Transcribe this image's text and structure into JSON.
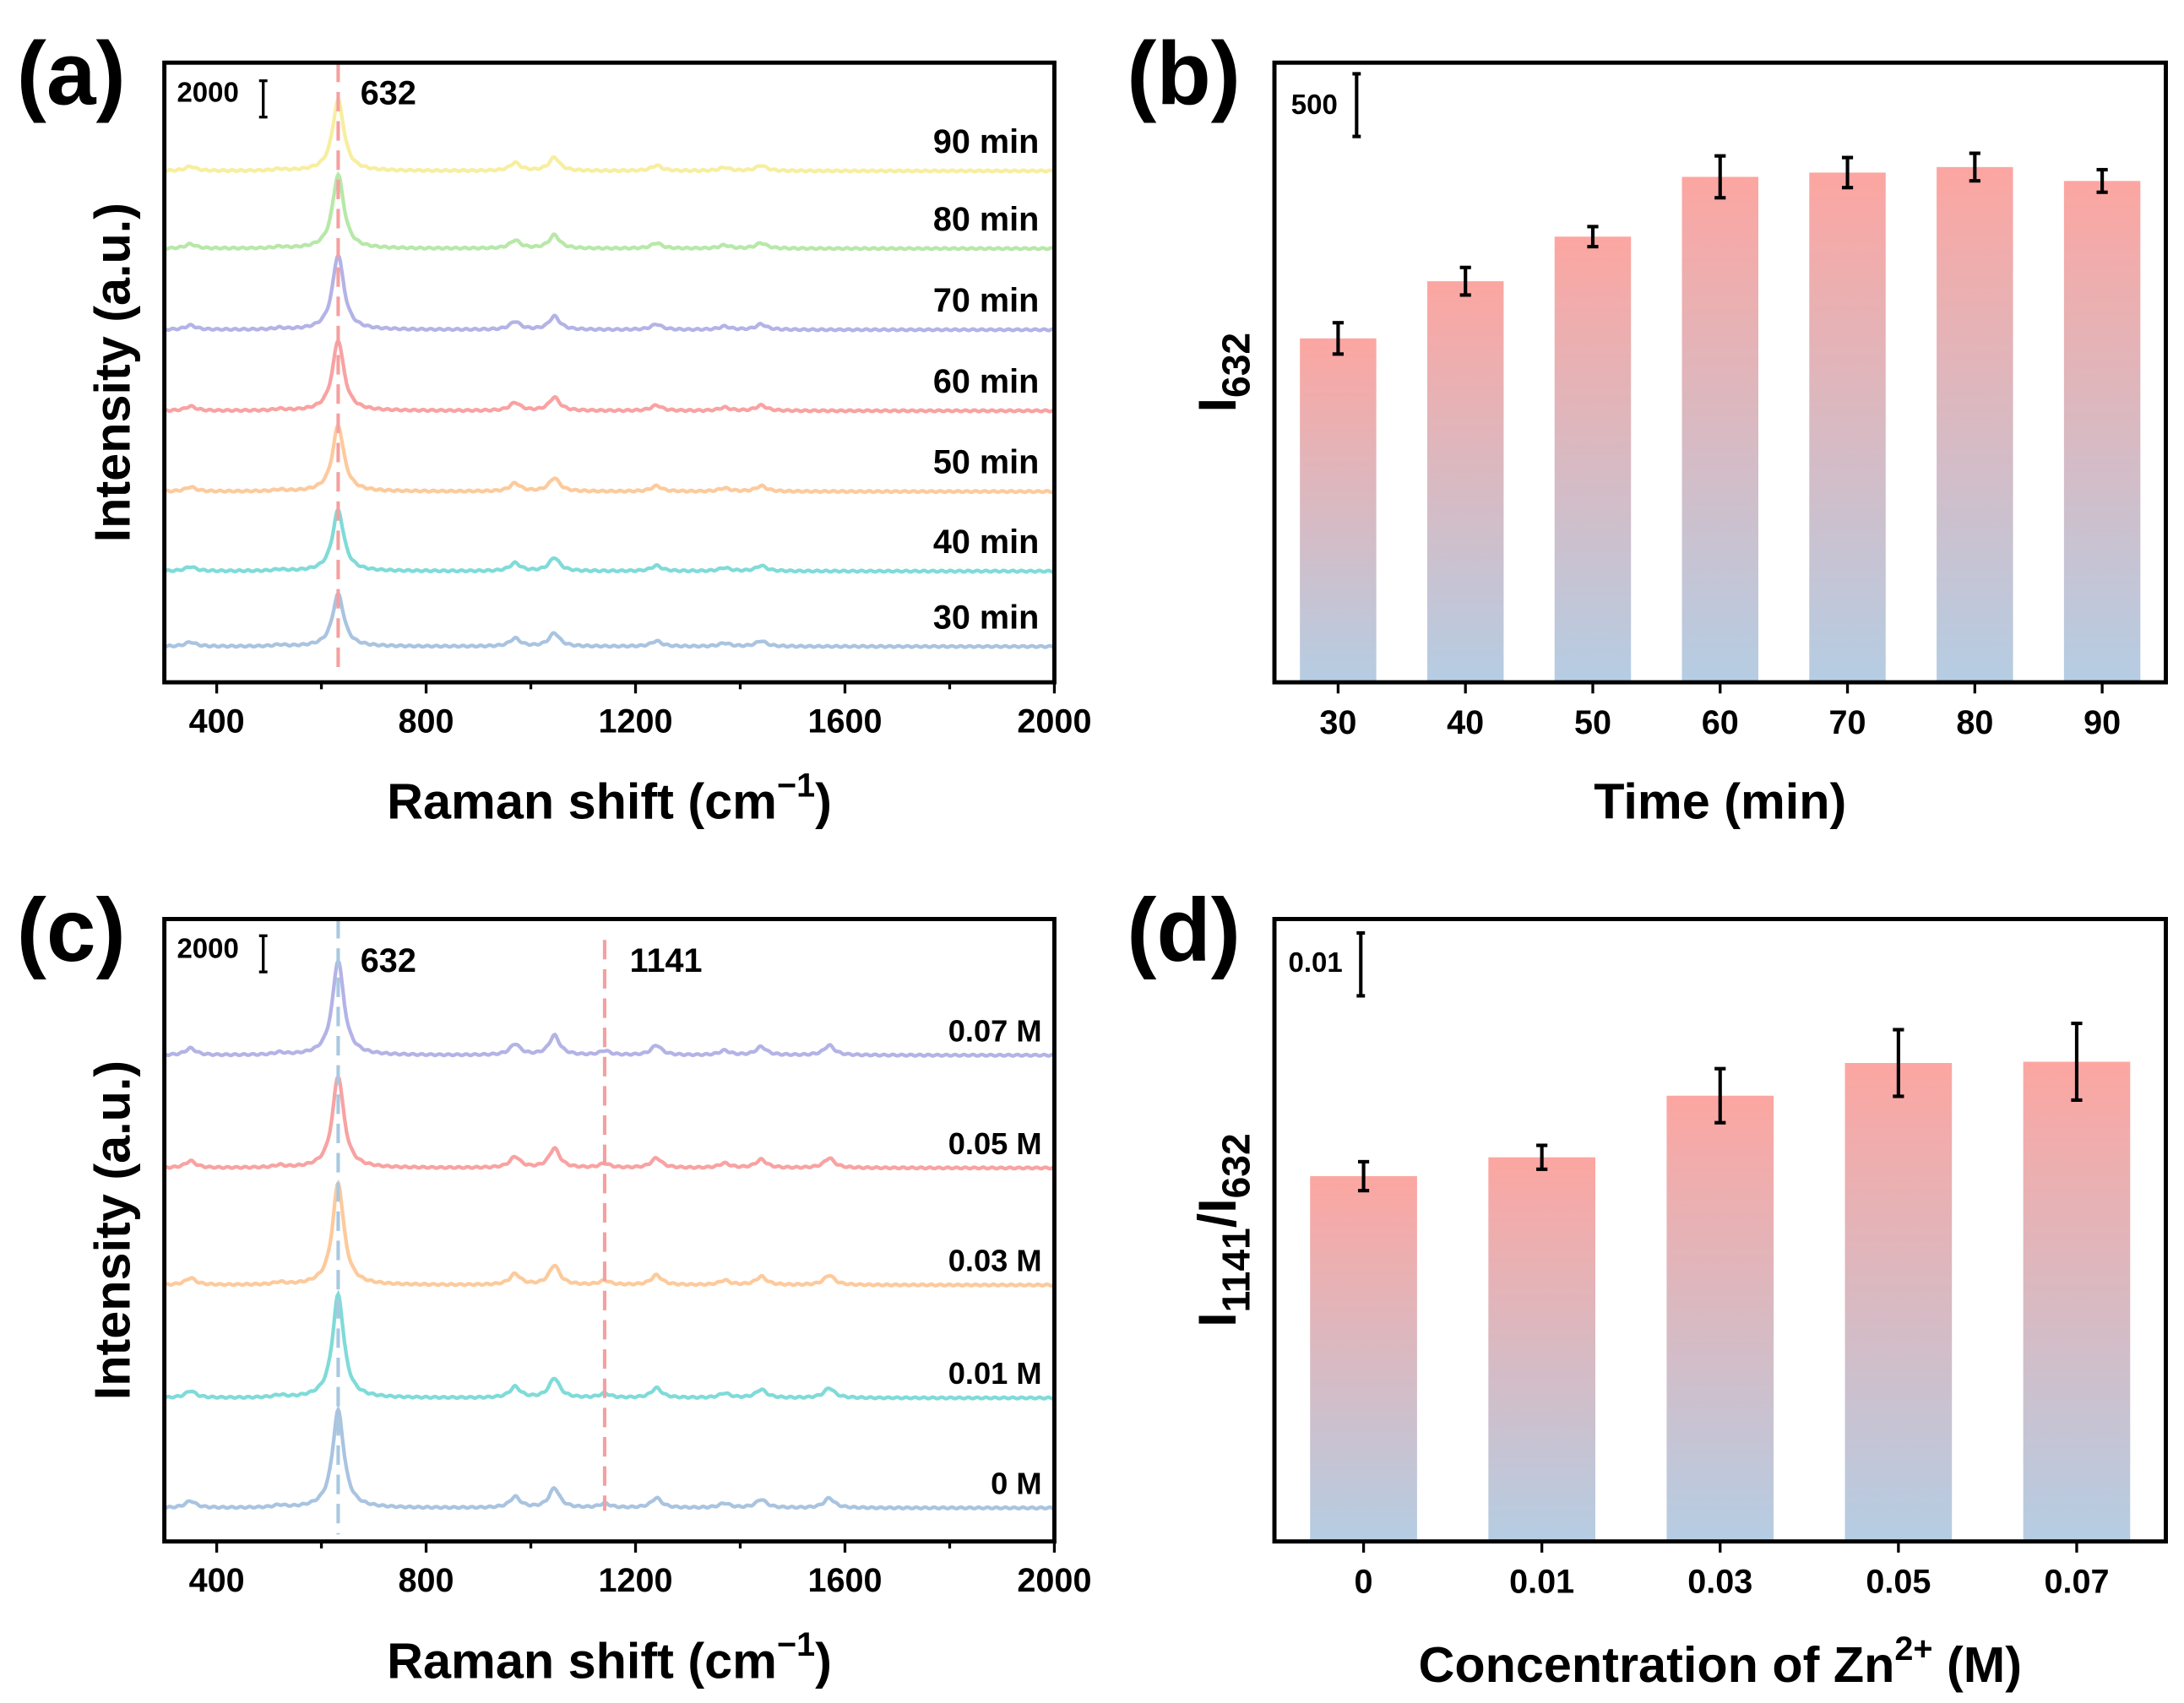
{
  "colors": {
    "bar_top": "#fca6a1",
    "bar_bottom": "#b5cde3",
    "axis": "#000000"
  },
  "chart_data": [
    {
      "panel": "(a)",
      "type": "line",
      "title": "",
      "xlabel": {
        "text": "Raman shift (cm",
        "sup": "−1",
        "after": ")"
      },
      "ylabel": "Intensity (a.u.)",
      "xlim": [
        300,
        2000
      ],
      "xticks": [
        400,
        800,
        1200,
        1600,
        2000
      ],
      "ylim": [
        0,
        34100
      ],
      "scale_bar": {
        "label": "2000",
        "value": 2000
      },
      "reference_lines": [
        {
          "x": 632,
          "label": "632",
          "color": "#f4a0a0"
        }
      ],
      "minor_peaks": [
        [
          350,
          240
        ],
        [
          520,
          80
        ],
        [
          970,
          440
        ],
        [
          1045,
          735
        ],
        [
          1240,
          300
        ],
        [
          1370,
          180
        ],
        [
          1440,
          300
        ]
      ],
      "series": [
        {
          "name": "30 min",
          "color": "#a9c4e0",
          "offset": 1970,
          "peak_632": 2880
        },
        {
          "name": "40 min",
          "color": "#7fdbd8",
          "offset": 6115,
          "peak_632": 3350
        },
        {
          "name": "50 min",
          "color": "#fdca9c",
          "offset": 10500,
          "peak_632": 3620
        },
        {
          "name": "60 min",
          "color": "#f9a2a2",
          "offset": 14940,
          "peak_632": 3880
        },
        {
          "name": "70 min",
          "color": "#b4b3e6",
          "offset": 19400,
          "peak_632": 4120
        },
        {
          "name": "80 min",
          "color": "#b7e8a8",
          "offset": 23870,
          "peak_632": 4060
        },
        {
          "name": "90 min",
          "color": "#f7ee9f",
          "offset": 28140,
          "peak_632": 3900
        }
      ]
    },
    {
      "panel": "(b)",
      "type": "bar",
      "xlabel": {
        "text": "Time (min)"
      },
      "ylabel": {
        "text": "I",
        "sub": "632"
      },
      "categories": [
        "30",
        "40",
        "50",
        "60",
        "70",
        "80",
        "90"
      ],
      "values": [
        2744,
        3200,
        3556,
        4033,
        4067,
        4111,
        4000
      ],
      "errors": [
        125,
        110,
        80,
        167,
        120,
        110,
        90
      ],
      "ylim": [
        0,
        4944
      ],
      "scale_bar": {
        "label": "500",
        "value": 500
      }
    },
    {
      "panel": "(c)",
      "type": "line",
      "xlabel": {
        "text": "Raman shift (cm",
        "sup": "−1",
        "after": ")"
      },
      "ylabel": "Intensity (a.u.)",
      "xlim": [
        300,
        2000
      ],
      "xticks": [
        400,
        800,
        1200,
        1600,
        2000
      ],
      "ylim": [
        0,
        34400
      ],
      "scale_bar": {
        "label": "2000",
        "value": 2000
      },
      "reference_lines": [
        {
          "x": 632,
          "label": "632",
          "color": "#a9c8e0"
        },
        {
          "x": 1141,
          "label": "1141",
          "color": "#f4a0a0"
        }
      ],
      "minor_peaks": [
        [
          350,
          380
        ],
        [
          520,
          120
        ],
        [
          970,
          600
        ],
        [
          1045,
          1080
        ],
        [
          1141,
          230
        ],
        [
          1240,
          540
        ],
        [
          1370,
          250
        ],
        [
          1440,
          460
        ],
        [
          1570,
          540
        ]
      ],
      "series": [
        {
          "name": "0 M",
          "color": "#a9c4e0",
          "offset": 1850,
          "peak_632": 5390
        },
        {
          "name": "0.01 M",
          "color": "#7fdbd8",
          "offset": 7930,
          "peak_632": 5700
        },
        {
          "name": "0.03 M",
          "color": "#fdca9c",
          "offset": 14170,
          "peak_632": 5620
        },
        {
          "name": "0.05 M",
          "color": "#f9a2a2",
          "offset": 20640,
          "peak_632": 5080
        },
        {
          "name": "0.07 M",
          "color": "#b4b3e6",
          "offset": 26870,
          "peak_632": 5240
        }
      ]
    },
    {
      "panel": "(d)",
      "type": "bar",
      "xlabel": {
        "text": "Concentration of Zn",
        "sup": "2+",
        "after": " (M)"
      },
      "ylabel": {
        "text": "I",
        "sub": "1141",
        "mid": "/I",
        "sub2": "632"
      },
      "categories": [
        "0",
        "0.01",
        "0.03",
        "0.05",
        "0.07"
      ],
      "values": [
        0.0581,
        0.0611,
        0.0709,
        0.0761,
        0.0763
      ],
      "errors": [
        0.0023,
        0.0019,
        0.0043,
        0.0053,
        0.0061
      ],
      "ylim": [
        0,
        0.099
      ],
      "scale_bar": {
        "label": "0.01",
        "value": 0.01
      }
    }
  ]
}
